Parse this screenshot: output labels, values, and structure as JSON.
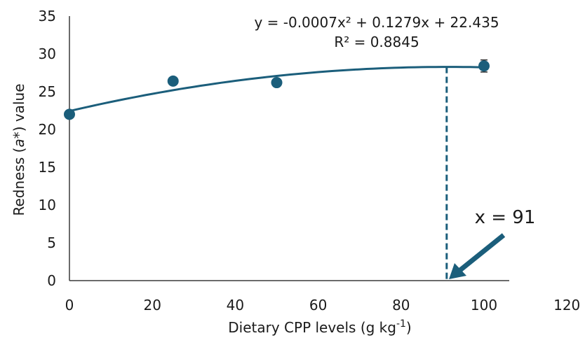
{
  "chart_data": {
    "type": "scatter",
    "title": "",
    "xlabel_prefix": "Dietary CPP levels (g kg",
    "xlabel_sup": "-1",
    "xlabel_suffix": ")",
    "ylabel_prefix": "Redness (",
    "ylabel_italic": "a*",
    "ylabel_suffix": ") value",
    "xlim": [
      0,
      120
    ],
    "ylim": [
      0,
      35
    ],
    "xticks": [
      0,
      20,
      40,
      60,
      80,
      100,
      120
    ],
    "yticks": [
      0,
      5,
      10,
      15,
      20,
      25,
      30,
      35
    ],
    "grid": false,
    "legend": "none",
    "color": "#1b5e7b",
    "series": [
      {
        "x": [
          0,
          25,
          50,
          100
        ],
        "y": [
          22.0,
          26.4,
          26.2,
          28.4
        ],
        "error": [
          0.4,
          0.3,
          0.4,
          0.8
        ]
      }
    ],
    "fit": {
      "type": "quadratic",
      "a": -0.0007,
      "b": 0.1279,
      "c": 22.435,
      "x_range": [
        0,
        100
      ]
    },
    "equation_line1": "y = -0.0007x² + 0.1279x + 22.435",
    "equation_line2": "R² = 0.8845",
    "optimum_x": 91,
    "optimum_label": "x = 91"
  }
}
